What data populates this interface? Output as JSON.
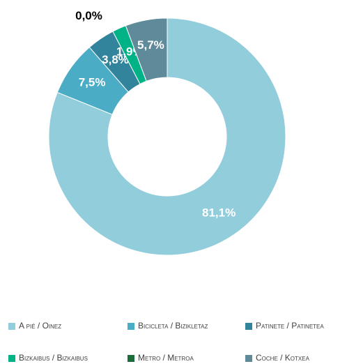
{
  "chart_data": {
    "type": "donut",
    "categories": [
      "A pié / Oinez",
      "Bicicleta / Bizikletaz",
      "Patinete / Patinetea",
      "Bizkaibus / Bizkaibus",
      "Metro / Metroa",
      "Coche / Kotxea"
    ],
    "values": [
      81.1,
      7.5,
      3.8,
      1.9,
      0.0,
      5.7
    ],
    "value_labels": [
      "81,1%",
      "7,5%",
      "3,8%",
      "1,9%",
      "0,0%",
      "5,7%"
    ],
    "colors": [
      "#92cddc",
      "#4bacc6",
      "#31849b",
      "#00b386",
      "#1e6b3c",
      "#5f8a9a"
    ],
    "legend": "bottom"
  }
}
